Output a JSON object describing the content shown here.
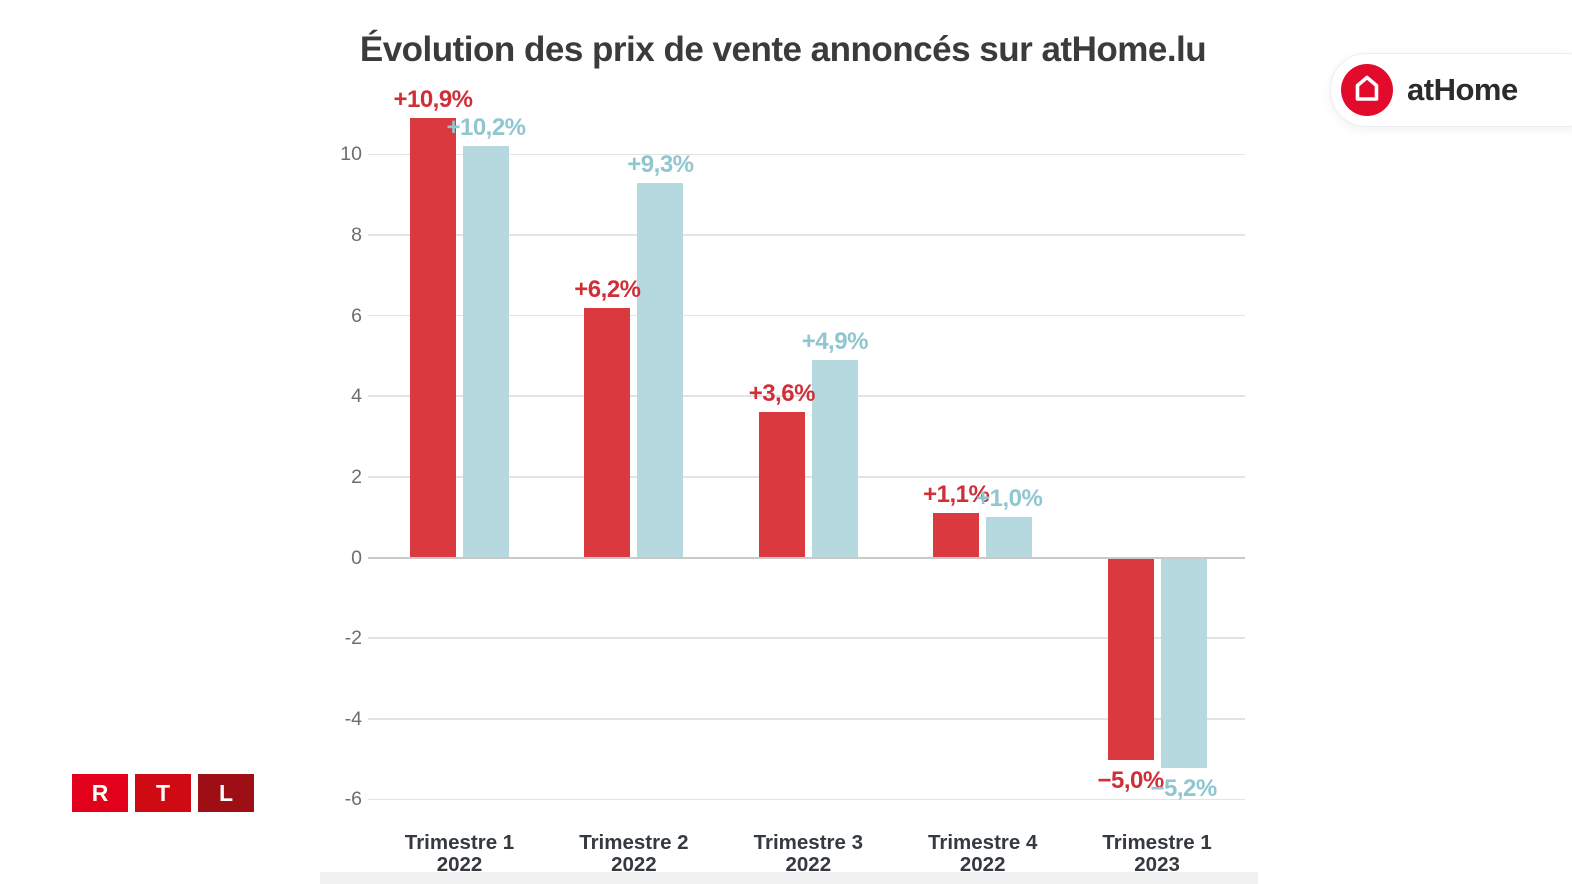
{
  "brand_badge": {
    "name": "atHome",
    "icon": "house-icon",
    "icon_bg": "#e30b2c"
  },
  "rtl_logo": {
    "letters": [
      {
        "char": "R",
        "color": "#e2001a"
      },
      {
        "char": "T",
        "color": "#cf0a12"
      },
      {
        "char": "L",
        "color": "#9d0f14"
      }
    ]
  },
  "chart_data": {
    "type": "bar",
    "title": "Évolution des prix de vente annoncés sur atHome.lu",
    "categories": [
      {
        "line1": "Trimestre 1",
        "line2": "2022"
      },
      {
        "line1": "Trimestre 2",
        "line2": "2022"
      },
      {
        "line1": "Trimestre 3",
        "line2": "2022"
      },
      {
        "line1": "Trimestre 4",
        "line2": "2022"
      },
      {
        "line1": "Trimestre 1",
        "line2": "2023"
      }
    ],
    "series": [
      {
        "name": "serie-rouge",
        "color": "#da3940",
        "label_color": "#d02f38",
        "values": [
          10.9,
          6.2,
          3.6,
          1.1,
          -5.0
        ],
        "labels": [
          "+10,9%",
          "+6,2%",
          "+3,6%",
          "+1,1%",
          "−5,0%"
        ]
      },
      {
        "name": "serie-bleue",
        "color": "#b5d9de",
        "label_color": "#8fc6cf",
        "values": [
          10.2,
          9.3,
          4.9,
          1.0,
          -5.2
        ],
        "labels": [
          "+10,2%",
          "+9,3%",
          "+4,9%",
          "+1,0%",
          "−5,2%"
        ]
      }
    ],
    "yticks": [
      10,
      8,
      6,
      4,
      2,
      0,
      -2,
      -4,
      -6
    ],
    "ylim": [
      -6.6,
      11.6
    ],
    "unit": "%",
    "grid": true,
    "legend": "none"
  }
}
